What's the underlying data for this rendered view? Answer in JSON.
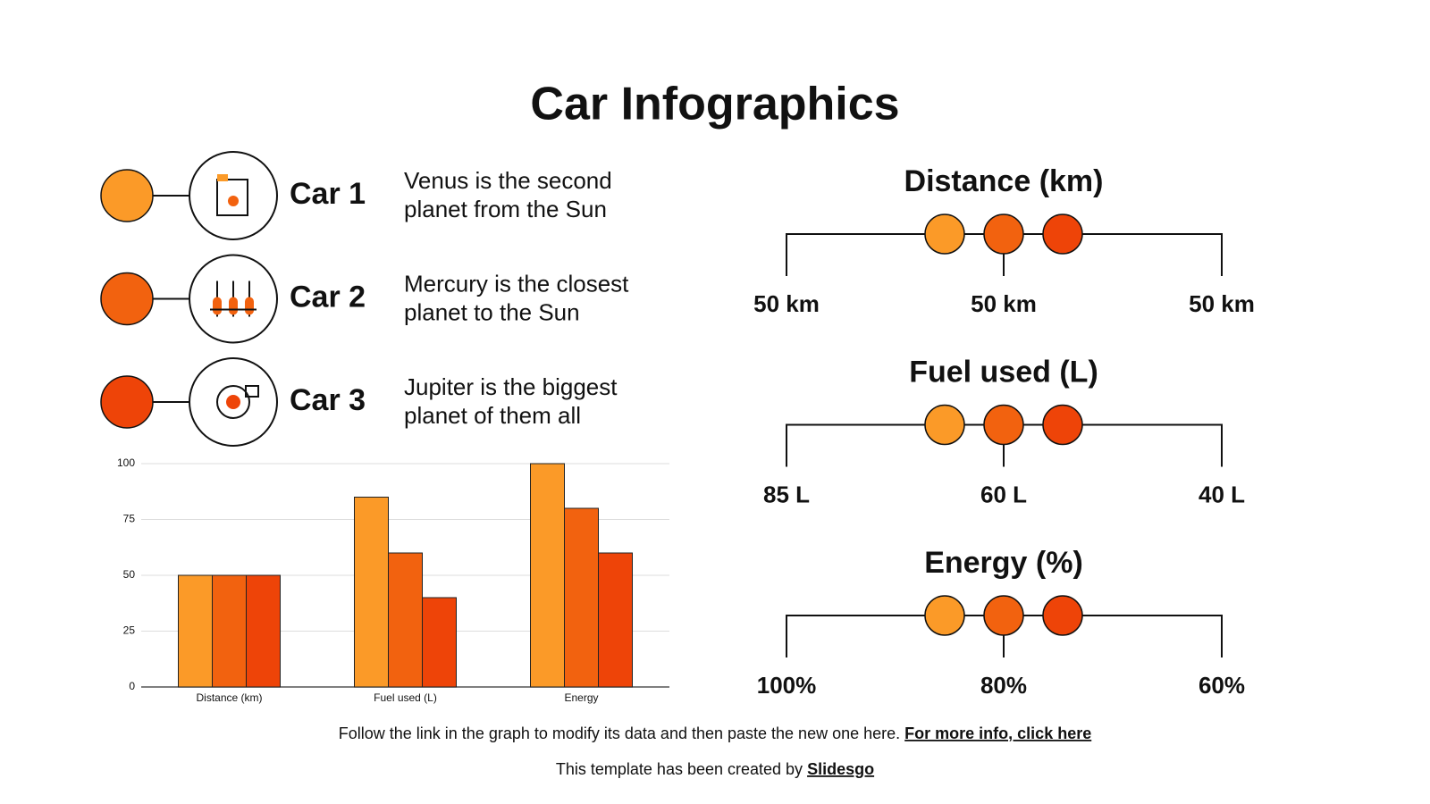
{
  "title": "Car Infographics",
  "cars": [
    {
      "label": "Car 1",
      "lines": [
        "Venus is the second",
        "planet from the Sun"
      ],
      "color": "#fb9a28"
    },
    {
      "label": "Car 2",
      "lines": [
        "Mercury is the closest",
        "planet to the Sun"
      ],
      "color": "#f2620f"
    },
    {
      "label": "Car 3",
      "lines": [
        "Jupiter is the biggest",
        "planet of them all"
      ],
      "color": "#ee4408"
    }
  ],
  "metrics": [
    {
      "title": "Distance (km)",
      "labels": [
        "50 km",
        "50 km",
        "50 km"
      ]
    },
    {
      "title": "Fuel used (L)",
      "labels": [
        "85 L",
        "60 L",
        "40 L"
      ]
    },
    {
      "title": "Energy (%)",
      "labels": [
        "100%",
        "80%",
        "60%"
      ]
    }
  ],
  "chart_data": {
    "type": "bar",
    "categories": [
      "Distance (km)",
      "Fuel used (L)",
      "Energy"
    ],
    "series": [
      {
        "color": "#fb9a28",
        "values": [
          50,
          85,
          100
        ]
      },
      {
        "color": "#f2620f",
        "values": [
          50,
          60,
          80
        ]
      },
      {
        "color": "#ee4408",
        "values": [
          50,
          40,
          60
        ]
      }
    ],
    "ylim": [
      0,
      100
    ],
    "yticks": [
      0,
      25,
      50,
      75,
      100
    ],
    "grid": true
  },
  "footer": {
    "note": "Follow the link in the graph to modify its data and then paste the new one here.",
    "link": "For more info, click here",
    "credit": "This template has been created by",
    "credit_link": "Slidesgo"
  }
}
